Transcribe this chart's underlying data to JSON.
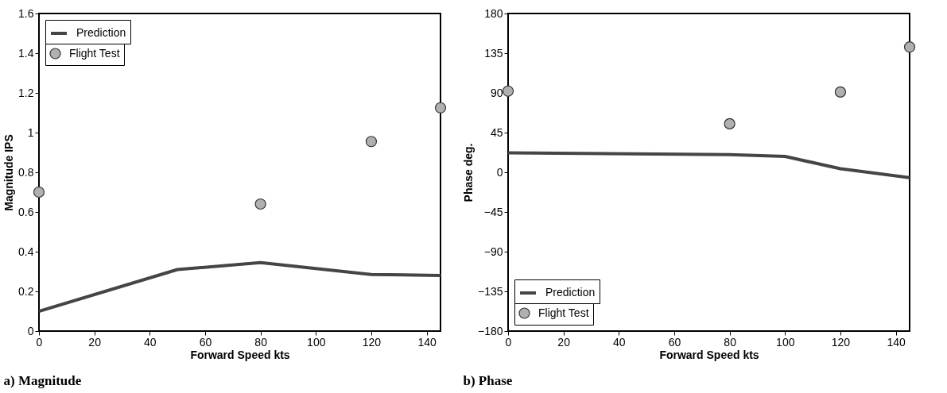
{
  "chart_data": [
    {
      "type": "line",
      "title": "a) Magnitude",
      "xlabel": "Forward Speed  kts",
      "ylabel": "Magnitude  IPS",
      "xlim": [
        0,
        145
      ],
      "xticks": [
        0,
        20,
        40,
        60,
        80,
        100,
        120,
        140
      ],
      "ylim": [
        0,
        1.6
      ],
      "yticks": [
        0,
        0.2,
        0.4,
        0.6,
        0.8,
        1,
        1.2,
        1.4,
        1.6
      ],
      "grid": false,
      "legend": "top left",
      "series": [
        {
          "name": "Flight Test",
          "type": "scatter",
          "marker": "circle",
          "color": "#b0b0b0",
          "x": [
            0,
            80,
            120,
            145
          ],
          "values": [
            0.7,
            0.64,
            0.955,
            1.125
          ]
        },
        {
          "name": "Prediction",
          "type": "line",
          "color": "#454545",
          "x": [
            0,
            50,
            80,
            120,
            145
          ],
          "values": [
            0.1,
            0.31,
            0.345,
            0.285,
            0.28
          ]
        }
      ]
    },
    {
      "type": "line",
      "title": "b) Phase",
      "xlabel": "Forward Speed  kts",
      "ylabel": "Phase  deg.",
      "xlim": [
        0,
        145
      ],
      "xticks": [
        0,
        20,
        40,
        60,
        80,
        100,
        120,
        140
      ],
      "ylim": [
        -180,
        180
      ],
      "yticks": [
        -180,
        -135,
        -90,
        -45,
        0,
        45,
        90,
        135,
        180
      ],
      "grid": false,
      "legend": "bottom left",
      "series": [
        {
          "name": "Flight Test",
          "type": "scatter",
          "marker": "circle",
          "color": "#b0b0b0",
          "x": [
            0,
            80,
            120,
            145
          ],
          "values": [
            92,
            55,
            91,
            142
          ]
        },
        {
          "name": "Prediction",
          "type": "line",
          "color": "#454545",
          "x": [
            0,
            80,
            100,
            120,
            145
          ],
          "values": [
            22,
            20,
            18,
            4,
            -6
          ]
        }
      ]
    }
  ]
}
